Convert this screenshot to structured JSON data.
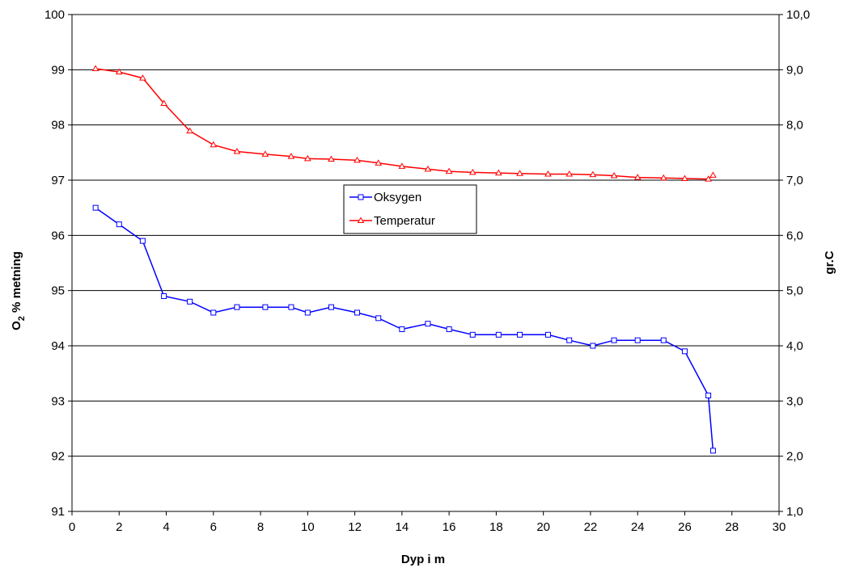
{
  "chart_data": {
    "type": "line",
    "xlabel": "Dyp i m",
    "ylabel": {
      "main": "O",
      "sub": "2",
      "rest": " % metning"
    },
    "y2label": "gr.C",
    "xlim": [
      0,
      30
    ],
    "ylim": [
      91,
      100
    ],
    "y2lim": [
      1.0,
      10.0
    ],
    "x_ticks": [
      "0",
      "2",
      "4",
      "6",
      "8",
      "10",
      "12",
      "14",
      "16",
      "18",
      "20",
      "22",
      "24",
      "26",
      "28",
      "30"
    ],
    "y_ticks": [
      "91",
      "92",
      "93",
      "94",
      "95",
      "96",
      "97",
      "98",
      "99",
      "100"
    ],
    "y2_ticks": [
      "1,0",
      "2,0",
      "3,0",
      "4,0",
      "5,0",
      "6,0",
      "7,0",
      "8,0",
      "9,0",
      "10,0"
    ],
    "grid": "horizontal",
    "legend": {
      "placement": "center"
    },
    "series": [
      {
        "name": "Oksygen",
        "axis": "left",
        "color": "#0000ff",
        "marker": "square",
        "x": [
          1,
          2,
          3,
          3.9,
          5,
          6,
          7,
          8.2,
          9.3,
          10,
          11,
          12.1,
          13,
          14,
          15.1,
          16,
          17,
          18.1,
          19,
          20.2,
          21.1,
          22.1,
          23,
          24,
          25.1,
          26,
          27,
          27.2
        ],
        "y": [
          96.5,
          96.2,
          95.9,
          94.9,
          94.8,
          94.6,
          94.7,
          94.7,
          94.7,
          94.6,
          94.7,
          94.6,
          94.5,
          94.3,
          94.4,
          94.3,
          94.2,
          94.2,
          94.2,
          94.2,
          94.1,
          94.0,
          94.1,
          94.1,
          94.1,
          93.9,
          93.1,
          92.1
        ]
      },
      {
        "name": "Temperatur",
        "axis": "right",
        "color": "#ff0000",
        "marker": "triangle",
        "x": [
          1,
          2,
          3,
          3.9,
          5,
          6,
          7,
          8.2,
          9.3,
          10,
          11,
          12.1,
          13,
          14,
          15.1,
          16,
          17,
          18.1,
          19,
          20.2,
          21.1,
          22.1,
          23,
          24,
          25.1,
          26,
          27,
          27.2
        ],
        "y": [
          9.02,
          8.96,
          8.85,
          8.39,
          7.89,
          7.64,
          7.52,
          7.47,
          7.43,
          7.39,
          7.38,
          7.36,
          7.31,
          7.25,
          7.2,
          7.16,
          7.14,
          7.13,
          7.12,
          7.11,
          7.11,
          7.1,
          7.08,
          7.05,
          7.04,
          7.03,
          7.02,
          7.09
        ]
      }
    ]
  }
}
